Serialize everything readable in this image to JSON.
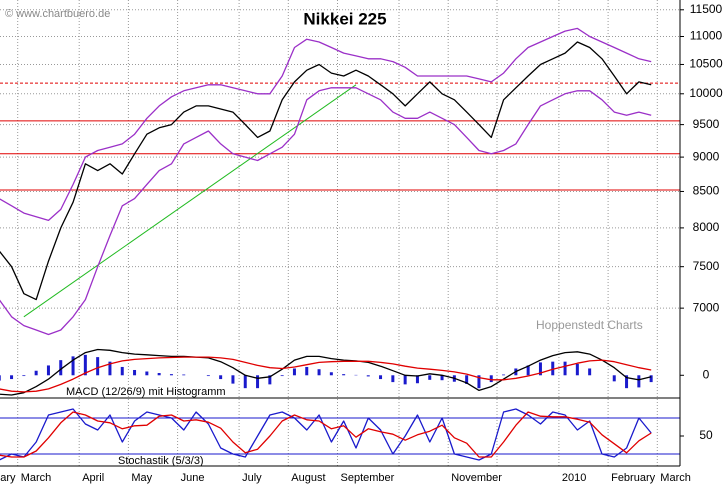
{
  "chart_data": [
    {
      "type": "line",
      "title": "Nikkei 225",
      "source": "© www.chartbuero.de",
      "watermark": "Hoppenstedt Charts",
      "categories": [
        "February",
        null,
        null,
        null,
        "March",
        null,
        null,
        null,
        null,
        "April",
        null,
        null,
        null,
        "May",
        null,
        null,
        null,
        "June",
        null,
        null,
        null,
        null,
        "July",
        null,
        null,
        null,
        "August",
        null,
        null,
        null,
        "September",
        null,
        null,
        null,
        null,
        null,
        null,
        null,
        null,
        "November",
        null,
        null,
        null,
        null,
        null,
        null,
        null,
        null,
        "2010",
        null,
        null,
        null,
        "February",
        null,
        null,
        null,
        "March",
        null
      ],
      "yscale": "log",
      "ylim": [
        6400,
        11650
      ],
      "yticks": [
        7000,
        7500,
        8000,
        8500,
        9000,
        9500,
        10000,
        10500,
        11000,
        11500
      ],
      "grid": true,
      "series": [
        {
          "style": "line",
          "color": "#000000",
          "values": [
            7950,
            7780,
            7700,
            7500,
            7170,
            7100,
            7570,
            8000,
            8350,
            8900,
            8800,
            8900,
            8750,
            9050,
            9350,
            9450,
            9500,
            9700,
            9800,
            9800,
            9750,
            9700,
            9500,
            9300,
            9400,
            9900,
            10200,
            10400,
            10500,
            10350,
            10300,
            10400,
            10300,
            10150,
            10000,
            9800,
            10000,
            10200,
            10000,
            9900,
            9700,
            9500,
            9300,
            9900,
            10100,
            10300,
            10500,
            10600,
            10700,
            10900,
            10800,
            10600,
            10300,
            10000,
            10200,
            10150,
            null,
            null
          ]
        },
        {
          "style": "line",
          "color": "#9b30c8",
          "values": [
            8600,
            8500,
            8400,
            8300,
            8200,
            8150,
            8100,
            8250,
            8600,
            9000,
            9100,
            9150,
            9200,
            9350,
            9600,
            9800,
            9950,
            10050,
            10100,
            10150,
            10150,
            10100,
            10050,
            10000,
            10000,
            10300,
            10800,
            10950,
            10900,
            10800,
            10700,
            10650,
            10600,
            10600,
            10550,
            10450,
            10300,
            10300,
            10300,
            10300,
            10300,
            10250,
            10200,
            10350,
            10600,
            10800,
            10900,
            11000,
            11100,
            11150,
            11000,
            10900,
            10800,
            10700,
            10600,
            10550,
            null,
            null
          ]
        },
        {
          "style": "line",
          "color": "#9b30c8",
          "values": [
            7500,
            7300,
            7100,
            6900,
            6800,
            6750,
            6700,
            6750,
            6900,
            7100,
            7500,
            7900,
            8300,
            8400,
            8600,
            8800,
            8900,
            9200,
            9300,
            9400,
            9200,
            9050,
            9000,
            8950,
            9050,
            9150,
            9350,
            9900,
            10050,
            10100,
            10100,
            10100,
            10000,
            9900,
            9700,
            9600,
            9600,
            9700,
            9600,
            9500,
            9300,
            9100,
            9050,
            9100,
            9200,
            9500,
            9800,
            9900,
            10000,
            10050,
            10050,
            9900,
            9700,
            9650,
            9700,
            9650,
            null,
            null
          ]
        }
      ],
      "hlines": [
        {
          "value": 10180,
          "color": "#e00000",
          "dashed": true
        },
        {
          "value": 9560,
          "color": "#e00000",
          "dashed": false
        },
        {
          "value": 9050,
          "color": "#e00000",
          "dashed": false
        },
        {
          "value": 8520,
          "color": "#e00000",
          "dashed": false
        }
      ],
      "trendline": {
        "start_index": 4,
        "start_value": 6900,
        "end_index": 31,
        "end_value": 10150,
        "color": "#22bb22"
      }
    },
    {
      "type": "line",
      "title": "MACD (12/26/9) mit Histogramm",
      "ylim": [
        -300,
        400
      ],
      "yticks": [
        0
      ],
      "series": [
        {
          "style": "histogram",
          "color": "#1a1acc",
          "values": [
            -50,
            -60,
            -70,
            -50,
            -10,
            60,
            130,
            200,
            250,
            270,
            240,
            180,
            110,
            70,
            50,
            30,
            15,
            10,
            0,
            -10,
            -50,
            -110,
            -170,
            -170,
            -120,
            -10,
            90,
            110,
            80,
            40,
            15,
            5,
            -15,
            -50,
            -90,
            -120,
            -105,
            -60,
            -65,
            -85,
            -115,
            -170,
            -90,
            10,
            90,
            130,
            170,
            180,
            180,
            150,
            90,
            0,
            -80,
            -170,
            -160,
            -90,
            null,
            null
          ]
        },
        {
          "style": "line",
          "color": "#000000",
          "values": [
            -150,
            -200,
            -250,
            -260,
            -230,
            -150,
            -50,
            80,
            200,
            300,
            340,
            330,
            300,
            280,
            270,
            260,
            250,
            250,
            240,
            230,
            180,
            100,
            0,
            -40,
            -20,
            80,
            200,
            250,
            250,
            220,
            200,
            190,
            170,
            120,
            60,
            0,
            -10,
            20,
            0,
            -40,
            -100,
            -200,
            -150,
            -50,
            50,
            120,
            200,
            260,
            300,
            310,
            280,
            200,
            100,
            -30,
            -60,
            -20,
            null,
            null
          ]
        },
        {
          "style": "line",
          "color": "#e00000",
          "values": [
            -100,
            -140,
            -180,
            -210,
            -220,
            -210,
            -180,
            -120,
            -50,
            30,
            100,
            150,
            190,
            210,
            220,
            230,
            235,
            240,
            240,
            240,
            230,
            210,
            170,
            130,
            100,
            90,
            110,
            140,
            170,
            180,
            185,
            185,
            185,
            170,
            150,
            120,
            95,
            80,
            65,
            45,
            15,
            -30,
            -60,
            -60,
            -40,
            -10,
            30,
            80,
            120,
            160,
            190,
            200,
            180,
            140,
            100,
            70,
            null,
            null
          ]
        }
      ]
    },
    {
      "type": "line",
      "title": "Stochastik (5/3/3)",
      "ylim": [
        0,
        110
      ],
      "yticks": [
        50
      ],
      "hlines": [
        {
          "value": 80,
          "color": "#1a1acc",
          "dashed": false
        },
        {
          "value": 20,
          "color": "#1a1acc",
          "dashed": false
        }
      ],
      "series": [
        {
          "style": "line",
          "color": "#1a1acc",
          "values": [
            30,
            15,
            10,
            20,
            15,
            40,
            85,
            90,
            95,
            70,
            60,
            85,
            40,
            75,
            90,
            85,
            80,
            60,
            90,
            70,
            30,
            20,
            15,
            50,
            85,
            90,
            80,
            60,
            85,
            40,
            75,
            30,
            80,
            60,
            20,
            50,
            85,
            40,
            80,
            20,
            15,
            10,
            20,
            90,
            95,
            85,
            70,
            90,
            85,
            60,
            75,
            20,
            15,
            30,
            80,
            55,
            null,
            null
          ]
        },
        {
          "style": "line",
          "color": "#e00000",
          "values": [
            35,
            25,
            18,
            15,
            15,
            25,
            47,
            72,
            90,
            85,
            75,
            72,
            62,
            67,
            68,
            83,
            85,
            75,
            77,
            73,
            63,
            40,
            22,
            28,
            50,
            75,
            85,
            77,
            75,
            62,
            67,
            48,
            62,
            57,
            53,
            43,
            52,
            58,
            68,
            47,
            38,
            15,
            15,
            40,
            68,
            90,
            83,
            82,
            82,
            78,
            73,
            52,
            37,
            22,
            42,
            55,
            null,
            null
          ]
        }
      ]
    }
  ]
}
